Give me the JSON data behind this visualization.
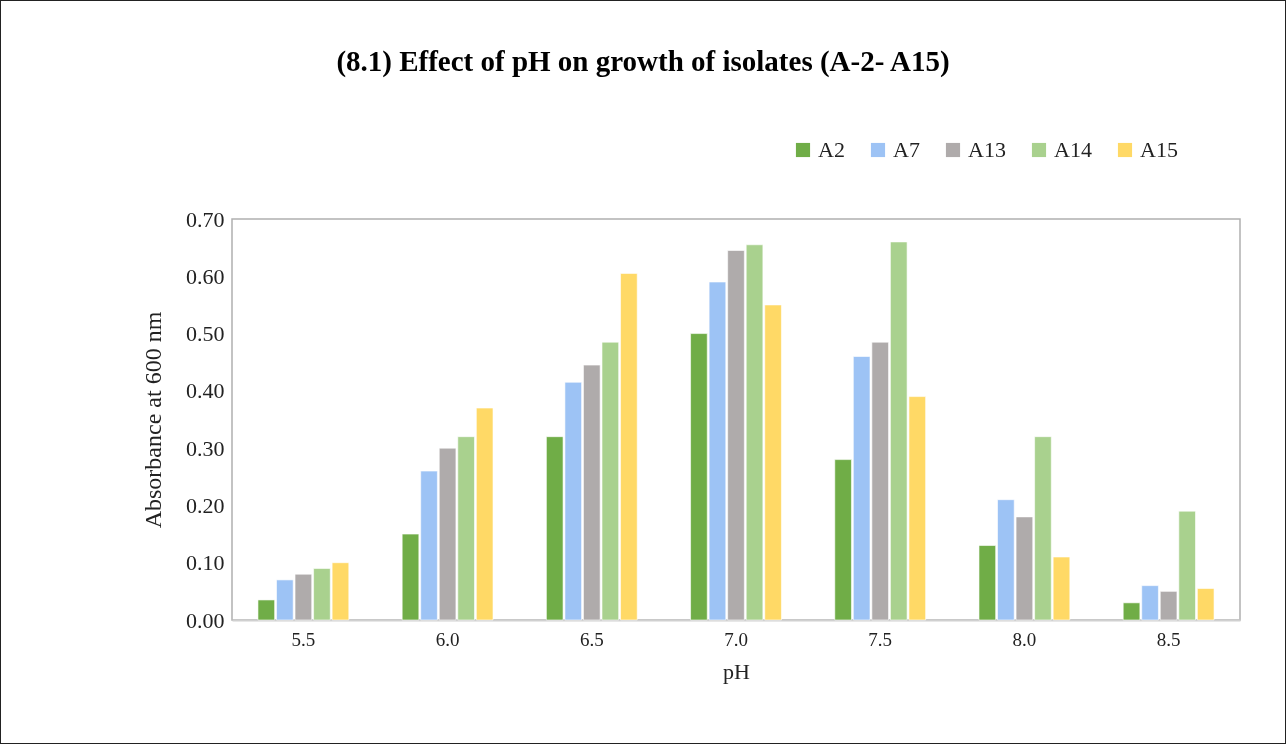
{
  "chart_data": {
    "type": "bar",
    "title": "(8.1) Effect of pH on growth of isolates (A-2- A15)",
    "xlabel": "pH",
    "ylabel": "Absorbance  at 600 nm",
    "categories": [
      "5.5",
      "6.0",
      "6.5",
      "7.0",
      "7.5",
      "8.0",
      "8.5"
    ],
    "series": [
      {
        "name": "A2",
        "color": "#70ad47",
        "values": [
          0.035,
          0.15,
          0.32,
          0.5,
          0.28,
          0.13,
          0.03
        ]
      },
      {
        "name": "A7",
        "color": "#9dc3f5",
        "values": [
          0.07,
          0.26,
          0.415,
          0.59,
          0.46,
          0.21,
          0.06
        ]
      },
      {
        "name": "A13",
        "color": "#afabab",
        "values": [
          0.08,
          0.3,
          0.445,
          0.645,
          0.485,
          0.18,
          0.05
        ]
      },
      {
        "name": "A14",
        "color": "#a9d18e",
        "values": [
          0.09,
          0.32,
          0.485,
          0.655,
          0.66,
          0.32,
          0.19
        ]
      },
      {
        "name": "A15",
        "color": "#ffd966",
        "values": [
          0.1,
          0.37,
          0.605,
          0.55,
          0.39,
          0.11,
          0.055
        ]
      }
    ],
    "ylim": [
      0,
      0.7
    ],
    "yticks": [
      {
        "value": 0,
        "label": "0.00"
      },
      {
        "value": 0.1,
        "label": "0.10"
      },
      {
        "value": 0.2,
        "label": "0.20"
      },
      {
        "value": 0.3,
        "label": "0.30"
      },
      {
        "value": 0.4,
        "label": "0.40"
      },
      {
        "value": 0.5,
        "label": "0.50"
      },
      {
        "value": 0.6,
        "label": "0.60"
      },
      {
        "value": 0.7,
        "label": "0.70"
      }
    ],
    "grid": false,
    "legend": "top right"
  }
}
